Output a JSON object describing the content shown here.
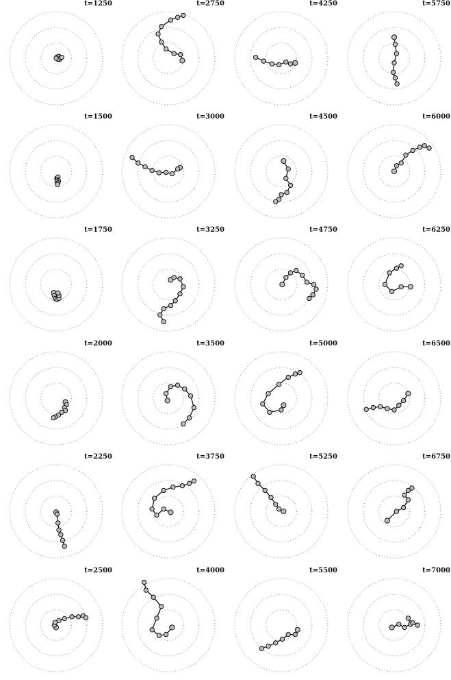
{
  "colors": {
    "guide": "#8a8a8a",
    "trajectory": "#111111",
    "marker_edge": "#111111",
    "marker_fill": "#bdbdbd",
    "background": "#ffffff"
  },
  "chart_data": [
    {
      "type": "scatter",
      "title": "t=1250",
      "grid": "dotted concentric circles",
      "x": [
        0.02,
        0.06,
        0.1,
        0.08,
        0.12,
        0.04,
        0.0
      ],
      "y": [
        0.02,
        0.04,
        0.01,
        -0.02,
        0.02,
        -0.02,
        0.0
      ]
    },
    {
      "type": "scatter",
      "title": "t=1500",
      "grid": "dotted concentric circles",
      "x": [
        0.02,
        0.04,
        0.03,
        0.05,
        0.02,
        0.04,
        0.03
      ],
      "y": [
        -0.15,
        -0.12,
        -0.18,
        -0.2,
        -0.22,
        -0.25,
        -0.28
      ]
    },
    {
      "type": "scatter",
      "title": "t=1750",
      "grid": "dotted concentric circles",
      "x": [
        -0.05,
        -0.04,
        -0.02,
        0.02,
        0.06,
        0.06,
        0.04
      ],
      "y": [
        -0.18,
        -0.24,
        -0.3,
        -0.32,
        -0.3,
        -0.24,
        -0.18
      ]
    },
    {
      "type": "scatter",
      "title": "t=2000",
      "grid": "dotted concentric circles",
      "x": [
        0.2,
        0.22,
        0.18,
        0.2,
        0.12,
        0.05,
        -0.02,
        -0.06
      ],
      "y": [
        -0.08,
        -0.14,
        -0.2,
        -0.26,
        -0.3,
        -0.36,
        -0.4,
        -0.42
      ]
    },
    {
      "type": "scatter",
      "title": "t=2250",
      "grid": "dotted concentric circles",
      "x": [
        0.0,
        0.02,
        0.04,
        0.06,
        0.1,
        0.14,
        0.18
      ],
      "y": [
        -0.02,
        -0.06,
        -0.25,
        -0.4,
        -0.5,
        -0.62,
        -0.75
      ]
    },
    {
      "type": "scatter",
      "title": "t=2500",
      "grid": "dotted concentric circles",
      "x": [
        0.0,
        -0.04,
        -0.02,
        0.06,
        0.18,
        0.34,
        0.48,
        0.58,
        0.64
      ],
      "y": [
        -0.05,
        0.0,
        0.06,
        0.1,
        0.14,
        0.18,
        0.18,
        0.2,
        0.16
      ]
    },
    {
      "type": "scatter",
      "title": "t=2750",
      "grid": "dotted concentric circles",
      "x": [
        0.3,
        0.26,
        0.12,
        -0.05,
        -0.15,
        -0.22,
        -0.15,
        0.05,
        0.2,
        0.32
      ],
      "y": [
        -0.05,
        0.08,
        0.1,
        0.2,
        0.35,
        0.52,
        0.68,
        0.82,
        0.88,
        0.92
      ]
    },
    {
      "type": "scatter",
      "title": "t=3000",
      "grid": "dotted concentric circles",
      "x": [
        0.25,
        0.2,
        0.08,
        -0.05,
        -0.2,
        -0.35,
        -0.5,
        -0.65,
        -0.78
      ],
      "y": [
        0.08,
        0.05,
        -0.05,
        -0.02,
        -0.03,
        0.02,
        0.1,
        0.18,
        0.3
      ]
    },
    {
      "type": "scatter",
      "title": "t=3250",
      "grid": "dotted concentric circles",
      "x": [
        0.05,
        0.12,
        0.25,
        0.32,
        0.25,
        0.15,
        0.05,
        -0.1,
        -0.18,
        -0.1
      ],
      "y": [
        0.1,
        0.15,
        0.12,
        -0.05,
        -0.2,
        -0.35,
        -0.45,
        -0.52,
        -0.65,
        -0.8
      ]
    },
    {
      "type": "scatter",
      "title": "t=3500",
      "grid": "dotted concentric circles",
      "x": [
        -0.02,
        -0.05,
        0.05,
        0.2,
        0.35,
        0.48,
        0.55,
        0.45,
        0.32
      ],
      "y": [
        -0.05,
        0.1,
        0.25,
        0.28,
        0.2,
        0.05,
        -0.2,
        -0.42,
        -0.55
      ]
    },
    {
      "type": "scatter",
      "title": "t=3750",
      "grid": "dotted concentric circles",
      "x": [
        0.05,
        -0.1,
        -0.25,
        -0.35,
        -0.3,
        -0.1,
        0.1,
        0.3,
        0.45,
        0.55
      ],
      "y": [
        -0.02,
        0.05,
        -0.08,
        0.05,
        0.28,
        0.45,
        0.52,
        0.55,
        0.6,
        0.65
      ]
    },
    {
      "type": "scatter",
      "title": "t=4000",
      "grid": "dotted concentric circles",
      "x": [
        0.08,
        -0.05,
        -0.2,
        -0.35,
        -0.25,
        -0.15,
        -0.32,
        -0.48,
        -0.52
      ],
      "y": [
        -0.05,
        -0.2,
        -0.22,
        -0.1,
        0.15,
        0.4,
        0.6,
        0.75,
        0.92
      ]
    },
    {
      "type": "scatter",
      "title": "t=4250",
      "grid": "dotted concentric circles",
      "x": [
        0.3,
        0.2,
        0.1,
        -0.05,
        -0.2,
        -0.38,
        -0.55
      ],
      "y": [
        -0.1,
        -0.12,
        -0.08,
        -0.14,
        -0.12,
        -0.06,
        0.02
      ]
    },
    {
      "type": "scatter",
      "title": "t=4500",
      "grid": "dotted concentric circles",
      "x": [
        0.05,
        0.15,
        0.1,
        0.2,
        0.12,
        0.0,
        -0.05,
        -0.12
      ],
      "y": [
        0.22,
        0.05,
        -0.15,
        -0.3,
        -0.45,
        -0.5,
        -0.6,
        -0.65
      ]
    },
    {
      "type": "scatter",
      "title": "t=4750",
      "grid": "dotted concentric circles",
      "x": [
        0.02,
        0.1,
        0.2,
        0.32,
        0.45,
        0.55,
        0.7,
        0.75,
        0.68,
        0.6
      ],
      "y": [
        0.0,
        0.15,
        0.25,
        0.3,
        0.2,
        0.05,
        0.0,
        -0.1,
        -0.22,
        -0.3
      ]
    },
    {
      "type": "scatter",
      "title": "t=5000",
      "grid": "dotted concentric circles",
      "x": [
        0.05,
        0.0,
        -0.25,
        -0.4,
        -0.28,
        -0.05,
        0.15,
        0.3,
        0.4
      ],
      "y": [
        -0.15,
        -0.25,
        -0.3,
        -0.12,
        0.1,
        0.3,
        0.45,
        0.52,
        0.55
      ]
    },
    {
      "type": "scatter",
      "title": "t=5250",
      "grid": "dotted concentric circles",
      "x": [
        0.05,
        -0.05,
        -0.12,
        -0.22,
        -0.35,
        -0.5,
        -0.6
      ],
      "y": [
        0.0,
        0.05,
        0.15,
        0.3,
        0.45,
        0.6,
        0.75
      ]
    },
    {
      "type": "scatter",
      "title": "t=5500",
      "grid": "dotted concentric circles",
      "x": [
        0.35,
        0.3,
        0.15,
        0.02,
        -0.12,
        -0.28,
        -0.42
      ],
      "y": [
        -0.1,
        -0.2,
        -0.2,
        -0.3,
        -0.38,
        -0.45,
        -0.5
      ]
    },
    {
      "type": "scatter",
      "title": "t=5750",
      "grid": "dotted concentric circles",
      "x": [
        0.0,
        0.02,
        0.05,
        0.0,
        -0.02,
        0.02,
        0.06
      ],
      "y": [
        0.45,
        0.3,
        0.1,
        -0.1,
        -0.3,
        -0.42,
        -0.55
      ]
    },
    {
      "type": "scatter",
      "title": "t=6000",
      "grid": "dotted concentric circles",
      "x": [
        0.0,
        0.05,
        0.15,
        0.25,
        0.4,
        0.55,
        0.65,
        0.75
      ],
      "y": [
        0.0,
        0.12,
        0.18,
        0.35,
        0.45,
        0.52,
        0.55,
        0.5
      ]
    },
    {
      "type": "scatter",
      "title": "t=6250",
      "grid": "dotted concentric circles",
      "x": [
        0.35,
        0.15,
        -0.05,
        -0.2,
        -0.1,
        0.05,
        0.15
      ],
      "y": [
        -0.05,
        -0.05,
        -0.15,
        0.0,
        0.25,
        0.35,
        0.4
      ]
    },
    {
      "type": "scatter",
      "title": "t=6500",
      "grid": "dotted concentric circles",
      "x": [
        0.3,
        0.2,
        0.1,
        0.0,
        -0.15,
        -0.3,
        -0.45,
        -0.6
      ],
      "y": [
        0.1,
        -0.05,
        -0.15,
        -0.25,
        -0.22,
        -0.18,
        -0.2,
        -0.24
      ]
    },
    {
      "type": "scatter",
      "title": "t=6750",
      "grid": "dotted concentric circles",
      "x": [
        -0.15,
        0.05,
        0.2,
        0.3,
        0.22,
        0.3,
        0.38
      ],
      "y": [
        -0.2,
        0.0,
        0.08,
        0.25,
        0.35,
        0.45,
        0.5
      ]
    },
    {
      "type": "scatter",
      "title": "t=7000",
      "grid": "dotted concentric circles",
      "x": [
        -0.05,
        0.1,
        0.22,
        0.35,
        0.3,
        0.4,
        0.5
      ],
      "y": [
        -0.05,
        0.02,
        -0.05,
        0.02,
        0.15,
        0.05,
        0.0
      ]
    }
  ]
}
